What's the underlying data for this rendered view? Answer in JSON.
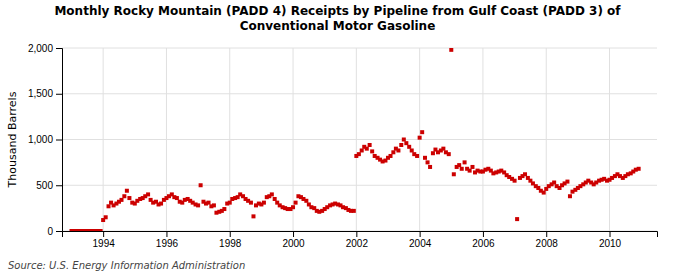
{
  "chart_data": {
    "type": "scatter",
    "title": "Monthly Rocky Mountain (PADD 4) Receipts by Pipeline from Gulf Coast (PADD 3) of\nConventional Motor Gasoline",
    "ylabel": "Thousand Barrels",
    "annotations": [
      "Source: U.S. Energy Information Administration"
    ],
    "color": "#CC0000",
    "marker": "square",
    "grid": true,
    "xlim": [
      1992.7,
      2011.5
    ],
    "xticks": [
      1994,
      1996,
      1998,
      2000,
      2002,
      2004,
      2006,
      2008,
      2010
    ],
    "ylim": [
      0,
      2000
    ],
    "yticks": [
      0,
      500,
      {
        "value": 1000,
        "label": "1,000"
      },
      {
        "value": 1500,
        "label": "1,500"
      },
      {
        "value": 2000,
        "label": "2,000"
      }
    ],
    "x": [
      1993.0,
      1993.08,
      1993.17,
      1993.25,
      1993.33,
      1993.42,
      1993.5,
      1993.58,
      1993.67,
      1993.75,
      1993.83,
      1993.92,
      1994.0,
      1994.08,
      1994.17,
      1994.25,
      1994.33,
      1994.42,
      1994.5,
      1994.58,
      1994.67,
      1994.75,
      1994.83,
      1994.92,
      1995.0,
      1995.08,
      1995.17,
      1995.25,
      1995.33,
      1995.42,
      1995.5,
      1995.58,
      1995.67,
      1995.75,
      1995.83,
      1995.92,
      1996.0,
      1996.08,
      1996.17,
      1996.25,
      1996.33,
      1996.42,
      1996.5,
      1996.58,
      1996.67,
      1996.75,
      1996.83,
      1996.92,
      1997.0,
      1997.08,
      1997.17,
      1997.25,
      1997.33,
      1997.42,
      1997.5,
      1997.58,
      1997.67,
      1997.75,
      1997.83,
      1997.92,
      1998.0,
      1998.08,
      1998.17,
      1998.25,
      1998.33,
      1998.42,
      1998.5,
      1998.58,
      1998.67,
      1998.75,
      1998.83,
      1998.92,
      1999.0,
      1999.08,
      1999.17,
      1999.25,
      1999.33,
      1999.42,
      1999.5,
      1999.58,
      1999.67,
      1999.75,
      1999.83,
      1999.92,
      2000.0,
      2000.08,
      2000.17,
      2000.25,
      2000.33,
      2000.42,
      2000.5,
      2000.58,
      2000.67,
      2000.75,
      2000.83,
      2000.92,
      2001.0,
      2001.08,
      2001.17,
      2001.25,
      2001.33,
      2001.42,
      2001.5,
      2001.58,
      2001.67,
      2001.75,
      2001.83,
      2001.92,
      2002.0,
      2002.08,
      2002.17,
      2002.25,
      2002.33,
      2002.42,
      2002.5,
      2002.58,
      2002.67,
      2002.75,
      2002.83,
      2002.92,
      2003.0,
      2003.08,
      2003.17,
      2003.25,
      2003.33,
      2003.42,
      2003.5,
      2003.58,
      2003.67,
      2003.75,
      2003.83,
      2003.92,
      2004.0,
      2004.08,
      2004.17,
      2004.25,
      2004.33,
      2004.42,
      2004.5,
      2004.58,
      2004.67,
      2004.75,
      2004.83,
      2004.92,
      2005.0,
      2005.08,
      2005.17,
      2005.25,
      2005.33,
      2005.42,
      2005.5,
      2005.58,
      2005.67,
      2005.75,
      2005.83,
      2005.92,
      2006.0,
      2006.08,
      2006.17,
      2006.25,
      2006.33,
      2006.42,
      2006.5,
      2006.58,
      2006.67,
      2006.75,
      2006.83,
      2006.92,
      2007.0,
      2007.08,
      2007.17,
      2007.25,
      2007.33,
      2007.42,
      2007.5,
      2007.58,
      2007.67,
      2007.75,
      2007.83,
      2007.92,
      2008.0,
      2008.08,
      2008.17,
      2008.25,
      2008.33,
      2008.42,
      2008.5,
      2008.58,
      2008.67,
      2008.75,
      2008.83,
      2008.92,
      2009.0,
      2009.08,
      2009.17,
      2009.25,
      2009.33,
      2009.42,
      2009.5,
      2009.58,
      2009.67,
      2009.75,
      2009.83,
      2009.92,
      2010.0,
      2010.08,
      2010.17,
      2010.25,
      2010.33,
      2010.42,
      2010.5,
      2010.58,
      2010.67,
      2010.75,
      2010.83,
      2010.92
    ],
    "values": [
      0,
      0,
      0,
      0,
      0,
      0,
      0,
      0,
      0,
      0,
      0,
      0,
      120,
      150,
      270,
      310,
      280,
      300,
      320,
      340,
      380,
      440,
      360,
      310,
      300,
      330,
      350,
      360,
      380,
      400,
      340,
      310,
      320,
      290,
      300,
      340,
      360,
      380,
      400,
      370,
      360,
      320,
      310,
      340,
      350,
      330,
      310,
      290,
      280,
      500,
      320,
      300,
      310,
      270,
      280,
      200,
      210,
      220,
      240,
      300,
      310,
      350,
      360,
      370,
      400,
      380,
      350,
      330,
      310,
      160,
      280,
      300,
      290,
      310,
      370,
      380,
      400,
      350,
      310,
      280,
      260,
      250,
      240,
      240,
      260,
      310,
      380,
      370,
      350,
      330,
      290,
      260,
      250,
      220,
      210,
      220,
      240,
      260,
      280,
      290,
      300,
      290,
      280,
      260,
      250,
      230,
      220,
      220,
      820,
      840,
      880,
      920,
      900,
      940,
      870,
      820,
      800,
      780,
      760,
      770,
      800,
      820,
      860,
      900,
      880,
      940,
      1000,
      960,
      920,
      880,
      840,
      820,
      1020,
      1080,
      800,
      750,
      700,
      850,
      890,
      860,
      880,
      900,
      860,
      840,
      1980,
      620,
      700,
      720,
      680,
      750,
      680,
      660,
      700,
      640,
      660,
      650,
      650,
      670,
      680,
      660,
      630,
      640,
      650,
      660,
      640,
      610,
      590,
      570,
      550,
      130,
      580,
      600,
      620,
      580,
      550,
      520,
      490,
      470,
      440,
      420,
      460,
      490,
      510,
      530,
      490,
      470,
      500,
      520,
      540,
      380,
      430,
      450,
      470,
      490,
      510,
      530,
      550,
      530,
      510,
      530,
      550,
      560,
      570,
      550,
      560,
      580,
      600,
      620,
      600,
      580,
      600,
      620,
      630,
      650,
      670,
      680
    ]
  }
}
